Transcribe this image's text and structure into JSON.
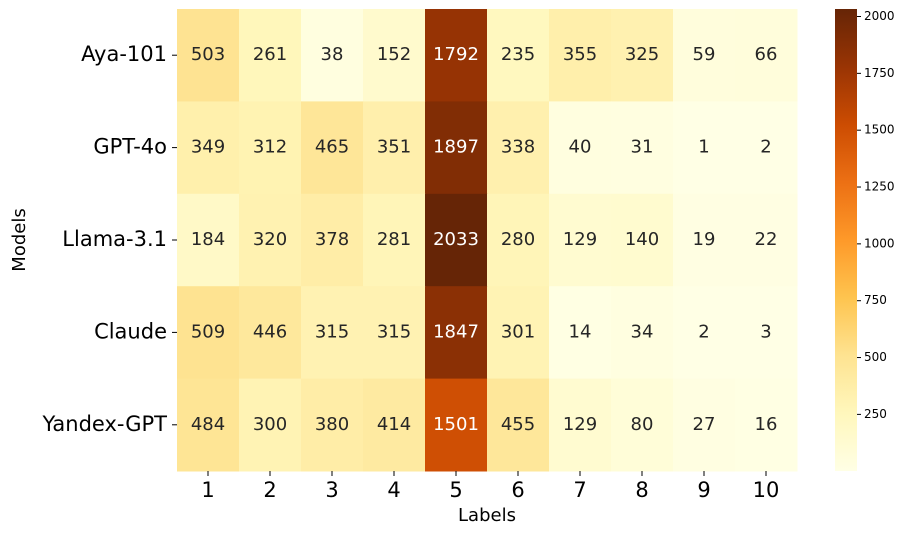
{
  "chart_data": {
    "type": "heatmap",
    "x_label": "Labels",
    "y_label": "Models",
    "categories": [
      1,
      2,
      3,
      4,
      5,
      6,
      7,
      8,
      9,
      10
    ],
    "rows": [
      "Aya-101",
      "GPT-4o",
      "Llama-3.1",
      "Claude",
      "Yandex-GPT"
    ],
    "values": [
      [
        503,
        261,
        38,
        152,
        1792,
        235,
        355,
        325,
        59,
        66
      ],
      [
        349,
        312,
        465,
        351,
        1897,
        338,
        40,
        31,
        1,
        2
      ],
      [
        184,
        320,
        378,
        281,
        2033,
        280,
        129,
        140,
        19,
        22
      ],
      [
        509,
        446,
        315,
        315,
        1847,
        301,
        14,
        34,
        2,
        3
      ],
      [
        484,
        300,
        380,
        414,
        1501,
        455,
        129,
        80,
        27,
        16
      ]
    ],
    "colormap": "YlOrBr",
    "zlim": [
      1,
      2033
    ],
    "zticks": [
      250,
      500,
      750,
      1000,
      1250,
      1500,
      1750,
      2000
    ]
  }
}
